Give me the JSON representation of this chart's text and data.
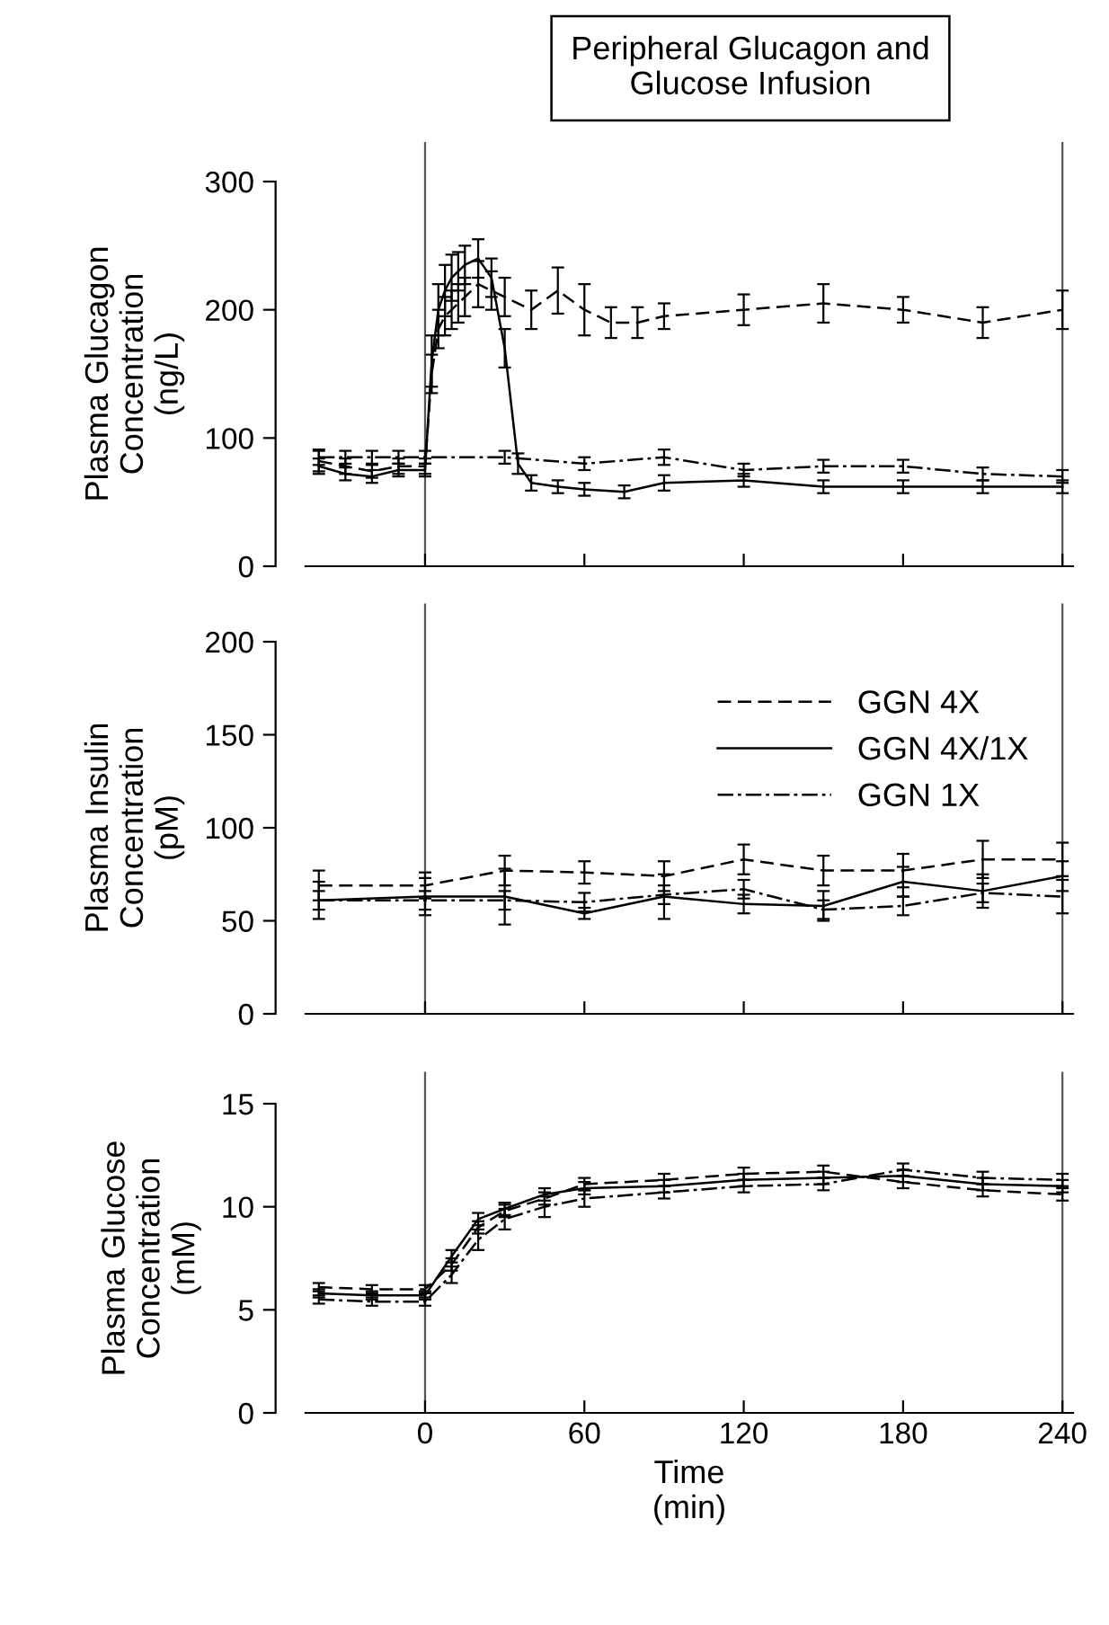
{
  "chart_data": [
    {
      "type": "line",
      "title": "Peripheral Glucagon and\nGlucose Infusion",
      "ylabel": "Plasma Glucagon\nConcentration\n(ng/L)",
      "xlim": [
        -45,
        244
      ],
      "ylim": [
        0,
        300
      ],
      "yticks": [
        0,
        100,
        200,
        300
      ],
      "xticks": [
        {
          "value": 0,
          "label": null
        },
        {
          "value": 60,
          "label": null
        },
        {
          "value": 120,
          "label": null
        },
        {
          "value": 180,
          "label": null
        },
        {
          "value": 240,
          "label": null
        }
      ],
      "tick_labels": "y",
      "grid": false,
      "legend": false,
      "marker": "none",
      "ref_lines": [
        {
          "axis": "x",
          "value": 0,
          "color": "#555555"
        },
        {
          "axis": "x",
          "value": 240,
          "color": "#555555"
        }
      ],
      "series": [
        {
          "color": "#000000",
          "line_style": "dashed",
          "x": [
            -40,
            -30,
            -20,
            -10,
            0,
            2.5,
            5,
            7.5,
            10,
            12.5,
            15,
            20,
            25,
            30,
            40,
            50,
            60,
            70,
            80,
            90,
            120,
            150,
            180,
            210,
            240
          ],
          "values": [
            82,
            78,
            74,
            78,
            78,
            150,
            185,
            195,
            200,
            205,
            210,
            220,
            215,
            210,
            200,
            215,
            200,
            190,
            190,
            195,
            200,
            205,
            200,
            190,
            200
          ],
          "errors": [
            8,
            6,
            5,
            6,
            6,
            15,
            15,
            15,
            15,
            15,
            15,
            18,
            15,
            15,
            15,
            18,
            20,
            12,
            12,
            10,
            12,
            15,
            10,
            12,
            15
          ]
        },
        {
          "color": "#000000",
          "line_style": "solid",
          "x": [
            -40,
            -30,
            -20,
            -10,
            0,
            2.5,
            5,
            7.5,
            10,
            12.5,
            15,
            20,
            25,
            30,
            35,
            40,
            50,
            60,
            75,
            90,
            120,
            150,
            180,
            210,
            240
          ],
          "values": [
            78,
            72,
            70,
            75,
            75,
            160,
            200,
            215,
            225,
            230,
            235,
            240,
            225,
            170,
            80,
            65,
            62,
            60,
            58,
            65,
            67,
            62,
            62,
            62,
            62
          ],
          "errors": [
            6,
            5,
            5,
            5,
            5,
            20,
            20,
            20,
            18,
            15,
            15,
            15,
            15,
            15,
            8,
            6,
            5,
            5,
            5,
            6,
            5,
            5,
            5,
            5,
            5
          ]
        },
        {
          "color": "#000000",
          "line_style": "dashdot",
          "x": [
            -40,
            -30,
            -20,
            -10,
            0,
            30,
            60,
            90,
            120,
            150,
            180,
            210,
            240
          ],
          "values": [
            85,
            85,
            85,
            85,
            85,
            85,
            80,
            85,
            75,
            78,
            78,
            72,
            70
          ],
          "errors": [
            6,
            5,
            5,
            5,
            5,
            5,
            5,
            6,
            5,
            5,
            5,
            5,
            5
          ]
        }
      ]
    },
    {
      "type": "line",
      "ylabel": "Plasma Insulin\nConcentration\n(pM)",
      "xlim": [
        -45,
        244
      ],
      "ylim": [
        0,
        200
      ],
      "yticks": [
        0,
        50,
        100,
        150,
        200
      ],
      "xticks": [
        {
          "value": 0,
          "label": null
        },
        {
          "value": 60,
          "label": null
        },
        {
          "value": 120,
          "label": null
        },
        {
          "value": 180,
          "label": null
        },
        {
          "value": 240,
          "label": null
        }
      ],
      "tick_labels": "y",
      "grid": false,
      "legend": "top right",
      "marker": "none",
      "ref_lines": [
        {
          "axis": "x",
          "value": 0,
          "color": "#555555"
        },
        {
          "axis": "x",
          "value": 240,
          "color": "#555555"
        }
      ],
      "series": [
        {
          "name": "GGN 4X",
          "color": "#000000",
          "line_style": "dashed",
          "x": [
            -40,
            0,
            30,
            60,
            90,
            120,
            150,
            180,
            210,
            240
          ],
          "values": [
            69,
            69,
            77,
            76,
            74,
            83,
            77,
            77,
            83,
            83
          ],
          "errors": [
            8,
            7,
            8,
            6,
            8,
            8,
            8,
            9,
            10,
            9
          ]
        },
        {
          "name": "GGN 4X/1X",
          "color": "#000000",
          "line_style": "solid",
          "x": [
            -40,
            0,
            30,
            60,
            90,
            120,
            150,
            180,
            210,
            240
          ],
          "values": [
            61,
            63,
            63,
            54,
            63,
            59,
            58,
            71,
            66,
            74
          ],
          "errors": [
            10,
            10,
            15,
            3,
            12,
            5,
            8,
            8,
            9,
            8
          ]
        },
        {
          "name": "GGN 1X",
          "color": "#000000",
          "line_style": "dashdot",
          "x": [
            -40,
            0,
            30,
            60,
            90,
            120,
            150,
            180,
            210,
            240
          ],
          "values": [
            61,
            61,
            61,
            60,
            64,
            67,
            56,
            58,
            65,
            63
          ],
          "errors": [
            5,
            5,
            5,
            5,
            5,
            5,
            5,
            5,
            5,
            9
          ]
        }
      ]
    },
    {
      "type": "line",
      "ylabel": "Plasma Glucose\nConcentration\n(mM)",
      "xlabel": "Time\n(min)",
      "xlim": [
        -45,
        244
      ],
      "ylim": [
        0,
        15
      ],
      "yticks": [
        0,
        5,
        10,
        15
      ],
      "xticks": [
        0,
        60,
        120,
        180,
        240
      ],
      "grid": false,
      "legend": false,
      "marker": "none",
      "ref_lines": [
        {
          "axis": "x",
          "value": 0,
          "color": "#555555"
        },
        {
          "axis": "x",
          "value": 240,
          "color": "#555555"
        }
      ],
      "series": [
        {
          "color": "#000000",
          "line_style": "dashed",
          "x": [
            -40,
            -20,
            0,
            10,
            20,
            30,
            45,
            60,
            90,
            120,
            150,
            180,
            210,
            240
          ],
          "values": [
            6.1,
            6.0,
            6.0,
            7.2,
            9.0,
            9.8,
            10.4,
            11.1,
            11.3,
            11.6,
            11.7,
            11.2,
            10.8,
            10.6
          ],
          "errors": [
            0.2,
            0.2,
            0.2,
            0.3,
            0.3,
            0.3,
            0.3,
            0.3,
            0.3,
            0.3,
            0.3,
            0.3,
            0.3,
            0.3
          ]
        },
        {
          "color": "#000000",
          "line_style": "solid",
          "x": [
            -40,
            -20,
            0,
            10,
            20,
            30,
            45,
            60,
            90,
            120,
            150,
            180,
            210,
            240
          ],
          "values": [
            5.8,
            5.7,
            5.7,
            7.6,
            9.4,
            9.9,
            10.6,
            10.9,
            11.0,
            11.3,
            11.4,
            11.5,
            11.1,
            11.0
          ],
          "errors": [
            0.2,
            0.2,
            0.2,
            0.3,
            0.3,
            0.3,
            0.3,
            0.3,
            0.3,
            0.3,
            0.3,
            0.3,
            0.3,
            0.3
          ]
        },
        {
          "color": "#000000",
          "line_style": "dashdot",
          "x": [
            -40,
            -20,
            0,
            10,
            20,
            30,
            45,
            60,
            90,
            120,
            150,
            180,
            210,
            240
          ],
          "values": [
            5.5,
            5.4,
            5.4,
            6.7,
            8.4,
            9.4,
            10.0,
            10.4,
            10.7,
            11.0,
            11.1,
            11.8,
            11.4,
            11.3
          ],
          "errors": [
            0.2,
            0.2,
            0.2,
            0.4,
            0.5,
            0.5,
            0.5,
            0.4,
            0.3,
            0.3,
            0.3,
            0.3,
            0.3,
            0.3
          ]
        }
      ]
    }
  ]
}
